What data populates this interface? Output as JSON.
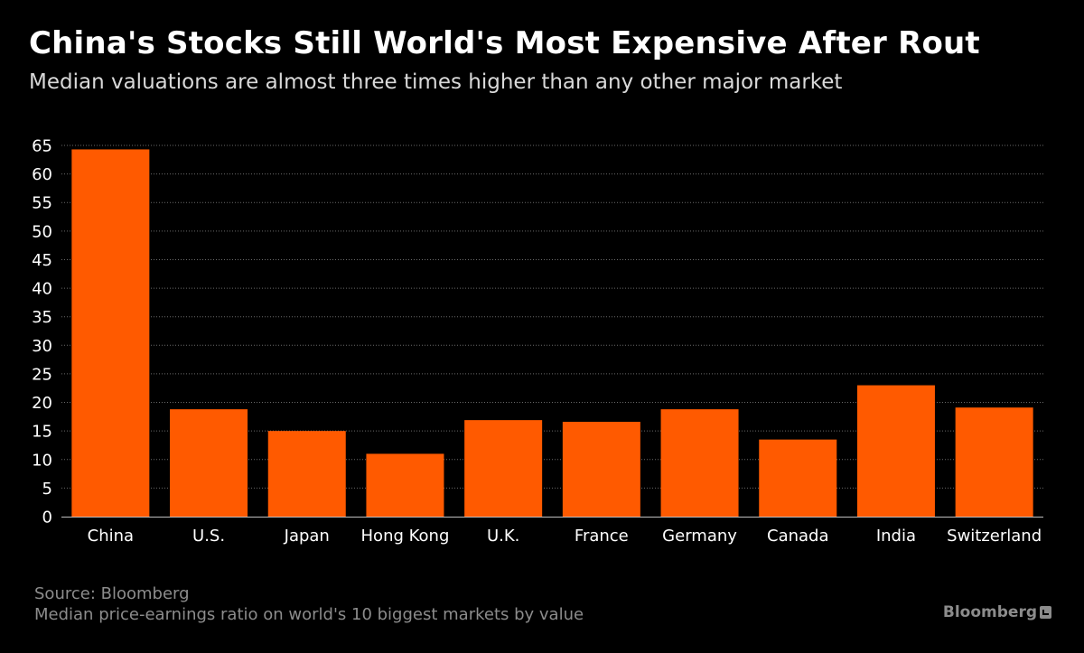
{
  "chart_data": {
    "type": "bar",
    "title": "China's Stocks Still World's Most Expensive After Rout",
    "subtitle": "Median valuations are almost three times higher than any other major market",
    "categories": [
      "China",
      "U.S.",
      "Japan",
      "Hong Kong",
      "U.K.",
      "France",
      "Germany",
      "Canada",
      "India",
      "Switzerland"
    ],
    "values": [
      64.3,
      18.8,
      15.0,
      11.0,
      16.9,
      16.6,
      18.8,
      13.5,
      23.0,
      19.1
    ],
    "ylim": [
      0,
      65
    ],
    "yticks": [
      0,
      5,
      10,
      15,
      20,
      25,
      30,
      35,
      40,
      45,
      50,
      55,
      60,
      65
    ],
    "grid": true,
    "bar_color": "#ff5a00"
  },
  "footer": {
    "source": "Source: Bloomberg",
    "note": "Median price-earnings ratio on world's 10 biggest markets by value",
    "brand": "Bloomberg",
    "brand_icon": "bloomberg-chart-icon"
  }
}
